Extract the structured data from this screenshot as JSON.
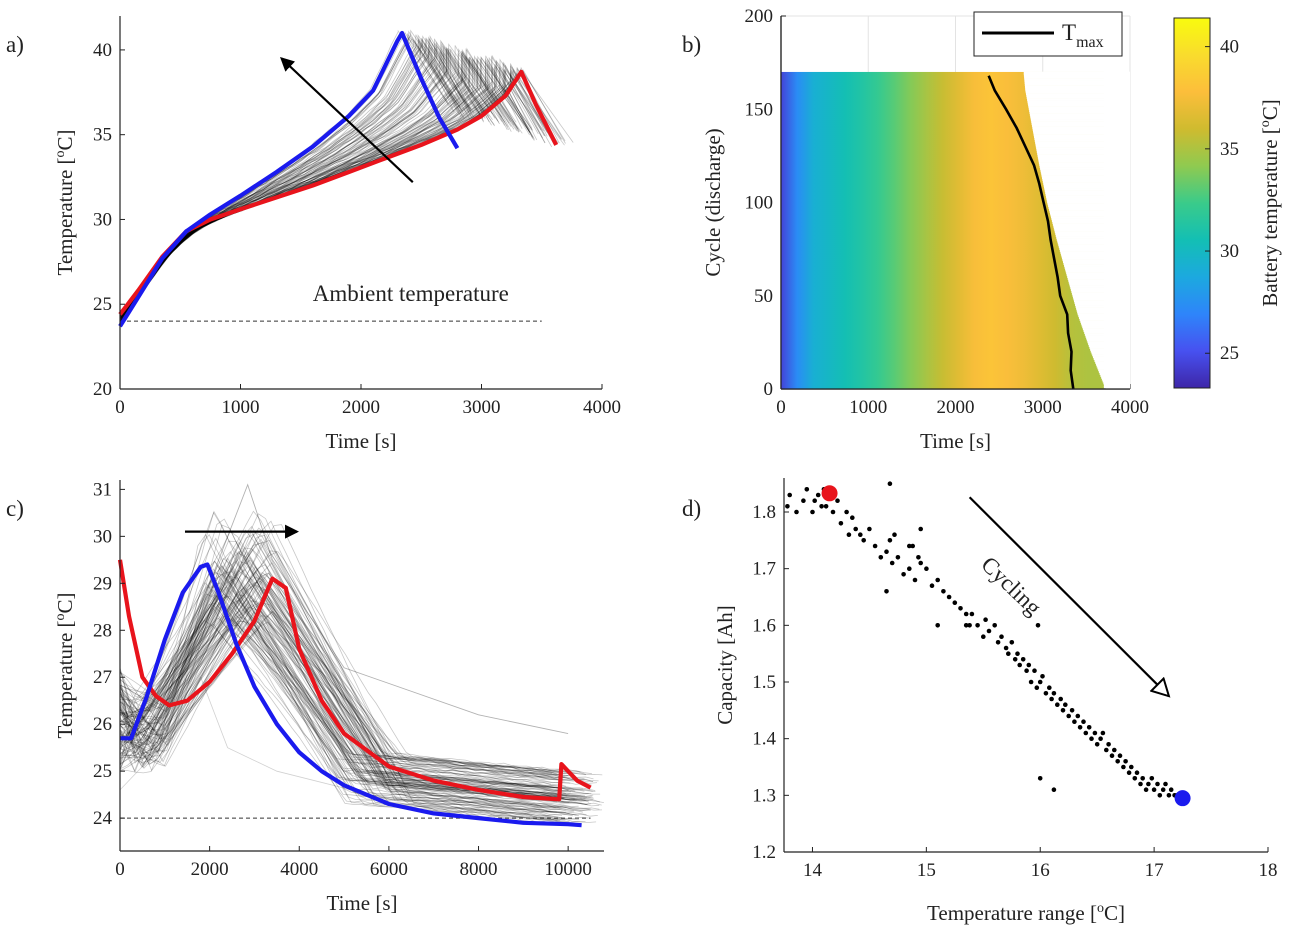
{
  "chart_data": [
    {
      "id": "a",
      "panel_label": "a)",
      "type": "line",
      "title": "",
      "xlabel": "Time [s]",
      "ylabel": "Temperature [°C]",
      "ylabel_parts": {
        "main": "Temperature [",
        "sup": "o",
        "tail": "C]"
      },
      "xlim": [
        0,
        4000
      ],
      "ylim": [
        20,
        42
      ],
      "xticks": [
        0,
        1000,
        2000,
        3000,
        4000
      ],
      "yticks": [
        20,
        25,
        30,
        35,
        40
      ],
      "grid": false,
      "annotations": [
        {
          "text": "Ambient temperature",
          "x": 1600,
          "y": 25.2
        }
      ],
      "reference_lines": [
        {
          "style": "dashed",
          "x": [
            0,
            3500
          ],
          "y": [
            24,
            24
          ]
        }
      ],
      "arrow": {
        "from": [
          2430,
          32.2
        ],
        "to": [
          1340,
          39.5
        ]
      },
      "series": [
        {
          "color": "#e8141c",
          "x": [
            0,
            150,
            350,
            550,
            750,
            1000,
            1300,
            1600,
            1900,
            2200,
            2500,
            2800,
            3000,
            3200,
            3330,
            3450,
            3620
          ],
          "y": [
            24.4,
            25.8,
            27.8,
            29.3,
            30.0,
            30.6,
            31.3,
            32.0,
            32.8,
            33.6,
            34.4,
            35.3,
            36.1,
            37.3,
            38.7,
            36.8,
            34.4
          ]
        },
        {
          "color": "#1a1aee",
          "x": [
            0,
            150,
            350,
            550,
            750,
            1000,
            1300,
            1600,
            1900,
            2100,
            2300,
            2340,
            2500,
            2650,
            2800
          ],
          "y": [
            23.7,
            25.4,
            27.7,
            29.3,
            30.3,
            31.4,
            32.8,
            34.3,
            36.1,
            37.6,
            40.5,
            41.0,
            38.3,
            36.0,
            34.2
          ]
        }
      ]
    },
    {
      "id": "b",
      "panel_label": "b)",
      "type": "heatmap",
      "title": "",
      "xlabel": "Time [s]",
      "ylabel": "Cycle (discharge)",
      "xlim": [
        0,
        4000
      ],
      "ylim": [
        0,
        200
      ],
      "xticks": [
        0,
        1000,
        2000,
        3000,
        4000
      ],
      "yticks": [
        0,
        50,
        100,
        150,
        200
      ],
      "grid": true,
      "legend": {
        "position": "top-right",
        "entries": [
          {
            "label_main": "T",
            "label_sub": "max",
            "color": "#000000"
          }
        ]
      },
      "colorbar": {
        "label": "Battery temperature [°C]",
        "label_parts": {
          "main": "Battery temperature [",
          "sup": "o",
          "tail": "C]"
        },
        "range": [
          23.3,
          41.4
        ],
        "ticks": [
          25,
          30,
          35,
          40
        ],
        "colormap": [
          "#3e26a8",
          "#4751f0",
          "#2e85fa",
          "#1ca9df",
          "#13bfb4",
          "#3acb8a",
          "#8fca50",
          "#cfbb2f",
          "#fcbe3b",
          "#f9dc2d",
          "#f9fb0e"
        ]
      },
      "cycles": 170,
      "end_time": {
        "cycles": [
          0,
          20,
          40,
          60,
          80,
          100,
          120,
          140,
          160,
          170
        ],
        "t": [
          3720,
          3550,
          3400,
          3280,
          3160,
          3050,
          2960,
          2880,
          2800,
          2780
        ]
      },
      "tmax_line": {
        "cycle": [
          0,
          10,
          20,
          30,
          40,
          50,
          60,
          70,
          80,
          90,
          100,
          110,
          120,
          130,
          140,
          150,
          160,
          168
        ],
        "t": [
          3350,
          3320,
          3330,
          3290,
          3280,
          3200,
          3170,
          3130,
          3090,
          3060,
          3010,
          2960,
          2900,
          2800,
          2700,
          2580,
          2450,
          2380
        ]
      }
    },
    {
      "id": "c",
      "panel_label": "c)",
      "type": "line",
      "title": "",
      "xlabel": "Time [s]",
      "ylabel": "Temperature [°C]",
      "ylabel_parts": {
        "main": "Temperature [",
        "sup": "o",
        "tail": "C]"
      },
      "xlim": [
        0,
        10800
      ],
      "ylim": [
        23.3,
        31.2
      ],
      "xticks": [
        0,
        2000,
        4000,
        6000,
        8000,
        10000
      ],
      "yticks": [
        24,
        25,
        26,
        27,
        28,
        29,
        30,
        31
      ],
      "grid": false,
      "reference_lines": [
        {
          "style": "dashed",
          "x": [
            0,
            10500
          ],
          "y": [
            24,
            24
          ]
        }
      ],
      "arrow": {
        "from": [
          1450,
          30.1
        ],
        "to": [
          3950,
          30.1
        ]
      },
      "series": [
        {
          "color": "#e8141c",
          "x": [
            0,
            200,
            500,
            800,
            1100,
            1500,
            2000,
            2500,
            3000,
            3400,
            3700,
            4000,
            4500,
            5000,
            6000,
            7000,
            8000,
            9000,
            9800,
            9850,
            10000,
            10200,
            10500
          ],
          "y": [
            29.5,
            28.3,
            27.0,
            26.6,
            26.4,
            26.5,
            26.9,
            27.5,
            28.2,
            29.1,
            28.9,
            27.6,
            26.5,
            25.8,
            25.1,
            24.8,
            24.6,
            24.45,
            24.4,
            25.15,
            25.0,
            24.8,
            24.65
          ]
        },
        {
          "color": "#1a1aee",
          "x": [
            0,
            250,
            600,
            1000,
            1400,
            1800,
            1950,
            2200,
            2600,
            3000,
            3500,
            4000,
            4500,
            5000,
            6000,
            7000,
            8000,
            9000,
            10000,
            10300
          ],
          "y": [
            25.7,
            25.7,
            26.6,
            27.8,
            28.8,
            29.35,
            29.4,
            28.8,
            27.7,
            26.8,
            26.0,
            25.4,
            25.0,
            24.7,
            24.3,
            24.1,
            24.0,
            23.9,
            23.87,
            23.85
          ]
        }
      ]
    },
    {
      "id": "d",
      "panel_label": "d)",
      "type": "scatter",
      "title": "",
      "xlabel": "Temperature range [°C]",
      "xlabel_parts": {
        "main": "Temperature range [",
        "sup": "o",
        "tail": "C]"
      },
      "ylabel": "Capacity [Ah]",
      "xlim": [
        13.75,
        18
      ],
      "ylim": [
        1.2,
        1.86
      ],
      "xticks": [
        14,
        15,
        16,
        17,
        18
      ],
      "yticks": [
        1.2,
        1.3,
        1.4,
        1.5,
        1.6,
        1.7,
        1.8
      ],
      "grid": false,
      "annotations": [
        {
          "text": "Cycling",
          "x": 15.7,
          "y": 1.66,
          "rotation_deg": 44
        }
      ],
      "arrow": {
        "from": [
          15.38,
          1.826
        ],
        "to": [
          17.13,
          1.475
        ]
      },
      "highlight_points": [
        {
          "x": 14.15,
          "y": 1.833,
          "color": "#e8141c"
        },
        {
          "x": 17.25,
          "y": 1.295,
          "color": "#1a1aee"
        }
      ],
      "points": {
        "x": [
          13.78,
          13.8,
          13.86,
          13.92,
          13.95,
          14.0,
          14.02,
          14.05,
          14.08,
          14.1,
          14.12,
          14.18,
          14.22,
          14.25,
          14.3,
          14.32,
          14.35,
          14.38,
          14.42,
          14.45,
          14.5,
          14.55,
          14.6,
          14.65,
          14.68,
          14.7,
          14.72,
          14.75,
          14.8,
          14.85,
          14.88,
          14.9,
          14.93,
          14.95,
          15.0,
          15.05,
          15.1,
          15.15,
          15.2,
          15.25,
          15.3,
          15.35,
          15.38,
          15.4,
          15.45,
          15.5,
          15.52,
          15.55,
          15.6,
          15.63,
          15.66,
          15.7,
          15.72,
          15.75,
          15.78,
          15.8,
          15.82,
          15.85,
          15.88,
          15.9,
          15.92,
          15.95,
          15.97,
          16.0,
          16.02,
          16.05,
          16.08,
          16.1,
          16.12,
          16.15,
          16.18,
          16.2,
          16.22,
          16.25,
          16.28,
          16.3,
          16.33,
          16.35,
          16.38,
          16.4,
          16.43,
          16.45,
          16.48,
          16.5,
          16.53,
          16.55,
          16.58,
          16.6,
          16.63,
          16.65,
          16.68,
          16.7,
          16.73,
          16.75,
          16.78,
          16.8,
          16.83,
          16.85,
          16.88,
          16.9,
          16.93,
          16.95,
          16.98,
          17.0,
          17.03,
          17.05,
          17.08,
          17.1,
          17.13,
          17.15,
          17.18,
          17.2,
          17.28,
          14.68,
          14.65,
          14.85,
          14.95,
          16.0,
          15.98,
          16.12,
          15.1,
          15.35
        ],
        "y": [
          1.81,
          1.83,
          1.8,
          1.82,
          1.84,
          1.8,
          1.82,
          1.83,
          1.81,
          1.84,
          1.81,
          1.8,
          1.82,
          1.78,
          1.8,
          1.76,
          1.79,
          1.77,
          1.76,
          1.75,
          1.77,
          1.74,
          1.72,
          1.73,
          1.75,
          1.71,
          1.76,
          1.72,
          1.69,
          1.7,
          1.74,
          1.68,
          1.72,
          1.71,
          1.7,
          1.67,
          1.68,
          1.66,
          1.65,
          1.64,
          1.63,
          1.62,
          1.6,
          1.62,
          1.6,
          1.58,
          1.61,
          1.59,
          1.6,
          1.57,
          1.58,
          1.56,
          1.55,
          1.57,
          1.54,
          1.55,
          1.53,
          1.54,
          1.52,
          1.53,
          1.5,
          1.52,
          1.49,
          1.5,
          1.51,
          1.48,
          1.49,
          1.47,
          1.48,
          1.46,
          1.47,
          1.45,
          1.46,
          1.44,
          1.45,
          1.43,
          1.44,
          1.42,
          1.43,
          1.41,
          1.42,
          1.4,
          1.41,
          1.39,
          1.4,
          1.41,
          1.38,
          1.39,
          1.37,
          1.38,
          1.36,
          1.37,
          1.35,
          1.36,
          1.34,
          1.35,
          1.33,
          1.34,
          1.32,
          1.33,
          1.31,
          1.32,
          1.33,
          1.31,
          1.32,
          1.3,
          1.31,
          1.32,
          1.3,
          1.31,
          1.3,
          1.3,
          1.3,
          1.85,
          1.66,
          1.74,
          1.77,
          1.33,
          1.6,
          1.31,
          1.6,
          1.6
        ]
      }
    }
  ]
}
